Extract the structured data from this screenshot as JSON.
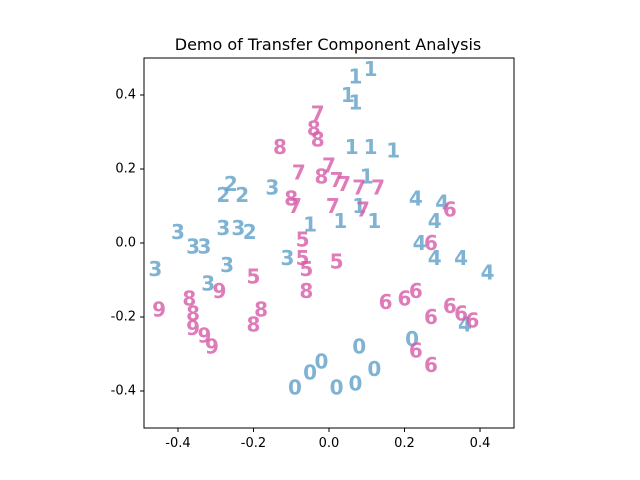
{
  "chart_data": {
    "type": "scatter",
    "title": "Demo of Transfer Component Analysis",
    "xlabel": "",
    "ylabel": "",
    "xlim": [
      -0.49,
      0.49
    ],
    "ylim": [
      -0.5,
      0.5
    ],
    "x_ticks": [
      "-0.4",
      "-0.2",
      "0.0",
      "0.2",
      "0.4"
    ],
    "x_tick_values": [
      -0.4,
      -0.2,
      0.0,
      0.2,
      0.4
    ],
    "y_ticks": [
      "-0.4",
      "-0.2",
      "0.0",
      "0.2",
      "0.4"
    ],
    "y_tick_values": [
      -0.4,
      -0.2,
      0.0,
      0.2,
      0.4
    ],
    "grid": false,
    "colors": {
      "blue": "#5fa0c8",
      "pink": "#d65aa8"
    },
    "points": [
      {
        "label": "1",
        "color": "blue",
        "x": 0.07,
        "y": 0.45
      },
      {
        "label": "1",
        "color": "blue",
        "x": 0.11,
        "y": 0.47
      },
      {
        "label": "1",
        "color": "blue",
        "x": 0.05,
        "y": 0.4
      },
      {
        "label": "1",
        "color": "blue",
        "x": 0.07,
        "y": 0.38
      },
      {
        "label": "1",
        "color": "blue",
        "x": 0.06,
        "y": 0.26
      },
      {
        "label": "1",
        "color": "blue",
        "x": 0.11,
        "y": 0.26
      },
      {
        "label": "1",
        "color": "blue",
        "x": 0.17,
        "y": 0.25
      },
      {
        "label": "1",
        "color": "blue",
        "x": 0.1,
        "y": 0.18
      },
      {
        "label": "1",
        "color": "blue",
        "x": -0.05,
        "y": 0.05
      },
      {
        "label": "1",
        "color": "blue",
        "x": 0.03,
        "y": 0.06
      },
      {
        "label": "1",
        "color": "blue",
        "x": 0.12,
        "y": 0.06
      },
      {
        "label": "1",
        "color": "blue",
        "x": 0.08,
        "y": 0.1
      },
      {
        "label": "2",
        "color": "blue",
        "x": -0.26,
        "y": 0.16
      },
      {
        "label": "2",
        "color": "blue",
        "x": -0.28,
        "y": 0.13
      },
      {
        "label": "2",
        "color": "blue",
        "x": -0.23,
        "y": 0.13
      },
      {
        "label": "2",
        "color": "blue",
        "x": -0.21,
        "y": 0.03
      },
      {
        "label": "3",
        "color": "blue",
        "x": -0.15,
        "y": 0.15
      },
      {
        "label": "3",
        "color": "blue",
        "x": -0.4,
        "y": 0.03
      },
      {
        "label": "3",
        "color": "blue",
        "x": -0.36,
        "y": -0.01
      },
      {
        "label": "3",
        "color": "blue",
        "x": -0.33,
        "y": -0.01
      },
      {
        "label": "3",
        "color": "blue",
        "x": -0.28,
        "y": 0.04
      },
      {
        "label": "3",
        "color": "blue",
        "x": -0.24,
        "y": 0.04
      },
      {
        "label": "3",
        "color": "blue",
        "x": -0.27,
        "y": -0.06
      },
      {
        "label": "3",
        "color": "blue",
        "x": -0.32,
        "y": -0.11
      },
      {
        "label": "3",
        "color": "blue",
        "x": -0.46,
        "y": -0.07
      },
      {
        "label": "3",
        "color": "blue",
        "x": -0.11,
        "y": -0.04
      },
      {
        "label": "4",
        "color": "blue",
        "x": 0.23,
        "y": 0.12
      },
      {
        "label": "4",
        "color": "blue",
        "x": 0.3,
        "y": 0.11
      },
      {
        "label": "4",
        "color": "blue",
        "x": 0.28,
        "y": 0.06
      },
      {
        "label": "4",
        "color": "blue",
        "x": 0.24,
        "y": 0.0
      },
      {
        "label": "4",
        "color": "blue",
        "x": 0.28,
        "y": -0.04
      },
      {
        "label": "4",
        "color": "blue",
        "x": 0.35,
        "y": -0.04
      },
      {
        "label": "4",
        "color": "blue",
        "x": 0.42,
        "y": -0.08
      },
      {
        "label": "4",
        "color": "blue",
        "x": 0.36,
        "y": -0.22
      },
      {
        "label": "0",
        "color": "blue",
        "x": -0.09,
        "y": -0.39
      },
      {
        "label": "0",
        "color": "blue",
        "x": -0.05,
        "y": -0.35
      },
      {
        "label": "0",
        "color": "blue",
        "x": -0.02,
        "y": -0.32
      },
      {
        "label": "0",
        "color": "blue",
        "x": 0.02,
        "y": -0.39
      },
      {
        "label": "0",
        "color": "blue",
        "x": 0.07,
        "y": -0.38
      },
      {
        "label": "0",
        "color": "blue",
        "x": 0.08,
        "y": -0.28
      },
      {
        "label": "0",
        "color": "blue",
        "x": 0.12,
        "y": -0.34
      },
      {
        "label": "0",
        "color": "blue",
        "x": 0.22,
        "y": -0.26
      },
      {
        "label": "8",
        "color": "pink",
        "x": -0.13,
        "y": 0.26
      },
      {
        "label": "8",
        "color": "pink",
        "x": -0.04,
        "y": 0.31
      },
      {
        "label": "8",
        "color": "pink",
        "x": -0.03,
        "y": 0.28
      },
      {
        "label": "8",
        "color": "pink",
        "x": -0.02,
        "y": 0.18
      },
      {
        "label": "8",
        "color": "pink",
        "x": -0.06,
        "y": -0.13
      },
      {
        "label": "8",
        "color": "pink",
        "x": -0.18,
        "y": -0.18
      },
      {
        "label": "8",
        "color": "pink",
        "x": -0.2,
        "y": -0.22
      },
      {
        "label": "8",
        "color": "pink",
        "x": -0.37,
        "y": -0.15
      },
      {
        "label": "8",
        "color": "pink",
        "x": -0.36,
        "y": -0.19
      },
      {
        "label": "8",
        "color": "pink",
        "x": -0.1,
        "y": 0.12
      },
      {
        "label": "7",
        "color": "pink",
        "x": -0.03,
        "y": 0.35
      },
      {
        "label": "7",
        "color": "pink",
        "x": -0.08,
        "y": 0.19
      },
      {
        "label": "7",
        "color": "pink",
        "x": 0.0,
        "y": 0.21
      },
      {
        "label": "7",
        "color": "pink",
        "x": 0.02,
        "y": 0.17
      },
      {
        "label": "7",
        "color": "pink",
        "x": 0.04,
        "y": 0.16
      },
      {
        "label": "7",
        "color": "pink",
        "x": 0.08,
        "y": 0.15
      },
      {
        "label": "7",
        "color": "pink",
        "x": 0.13,
        "y": 0.15
      },
      {
        "label": "7",
        "color": "pink",
        "x": 0.01,
        "y": 0.1
      },
      {
        "label": "7",
        "color": "pink",
        "x": 0.09,
        "y": 0.09
      },
      {
        "label": "7",
        "color": "pink",
        "x": -0.09,
        "y": 0.1
      },
      {
        "label": "5",
        "color": "pink",
        "x": -0.2,
        "y": -0.09
      },
      {
        "label": "5",
        "color": "pink",
        "x": 0.02,
        "y": -0.05
      },
      {
        "label": "5",
        "color": "pink",
        "x": -0.07,
        "y": -0.04
      },
      {
        "label": "5",
        "color": "pink",
        "x": -0.06,
        "y": -0.07
      },
      {
        "label": "5",
        "color": "pink",
        "x": -0.07,
        "y": 0.01
      },
      {
        "label": "9",
        "color": "pink",
        "x": -0.45,
        "y": -0.18
      },
      {
        "label": "9",
        "color": "pink",
        "x": -0.36,
        "y": -0.23
      },
      {
        "label": "9",
        "color": "pink",
        "x": -0.33,
        "y": -0.25
      },
      {
        "label": "9",
        "color": "pink",
        "x": -0.31,
        "y": -0.28
      },
      {
        "label": "9",
        "color": "pink",
        "x": -0.29,
        "y": -0.13
      },
      {
        "label": "6",
        "color": "pink",
        "x": 0.15,
        "y": -0.16
      },
      {
        "label": "6",
        "color": "pink",
        "x": 0.2,
        "y": -0.15
      },
      {
        "label": "6",
        "color": "pink",
        "x": 0.23,
        "y": -0.13
      },
      {
        "label": "6",
        "color": "pink",
        "x": 0.27,
        "y": -0.2
      },
      {
        "label": "6",
        "color": "pink",
        "x": 0.32,
        "y": -0.17
      },
      {
        "label": "6",
        "color": "pink",
        "x": 0.35,
        "y": -0.19
      },
      {
        "label": "6",
        "color": "pink",
        "x": 0.38,
        "y": -0.21
      },
      {
        "label": "6",
        "color": "pink",
        "x": 0.27,
        "y": 0.0
      },
      {
        "label": "6",
        "color": "pink",
        "x": 0.32,
        "y": 0.09
      },
      {
        "label": "6",
        "color": "pink",
        "x": 0.27,
        "y": -0.33
      },
      {
        "label": "6",
        "color": "pink",
        "x": 0.23,
        "y": -0.29
      }
    ]
  }
}
